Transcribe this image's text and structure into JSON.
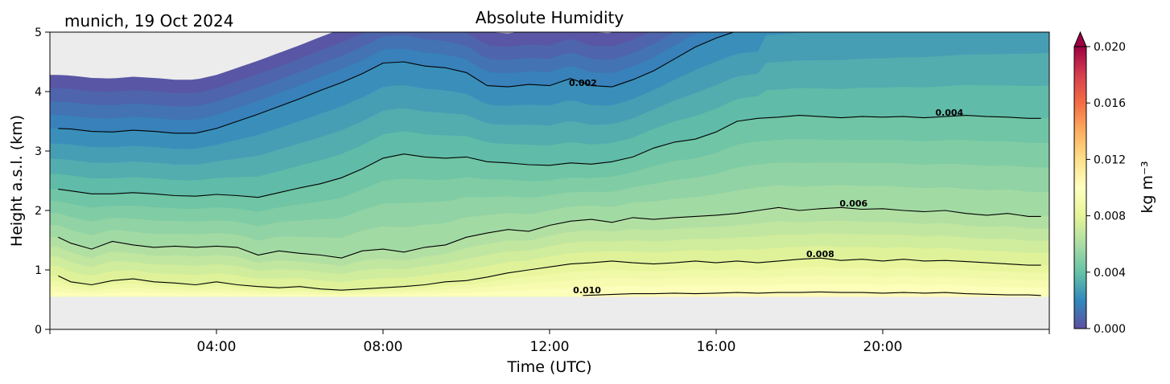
{
  "chart_data": {
    "type": "heatmap",
    "title": "Absolute Humidity",
    "location_label": "munich, 19 Oct 2024",
    "xlabel": "Time (UTC)",
    "ylabel": "Height a.s.l. (km)",
    "xlim": [
      0,
      24
    ],
    "ylim": [
      0,
      5
    ],
    "xticks": [
      {
        "value": 4,
        "label": "04:00"
      },
      {
        "value": 8,
        "label": "08:00"
      },
      {
        "value": 12,
        "label": "12:00"
      },
      {
        "value": 16,
        "label": "16:00"
      },
      {
        "value": 20,
        "label": "20:00"
      }
    ],
    "yticks": [
      {
        "value": 0,
        "label": "0"
      },
      {
        "value": 1,
        "label": "1"
      },
      {
        "value": 2,
        "label": "2"
      },
      {
        "value": 3,
        "label": "3"
      },
      {
        "value": 4,
        "label": "4"
      },
      {
        "value": 5,
        "label": "5"
      }
    ],
    "data_bottom_km": 0.55,
    "colorbar": {
      "label": "kg m⁻³",
      "min": 0.0,
      "max": 0.02,
      "colormap": "Spectral_r",
      "extend": "max",
      "ticks": [
        {
          "value": 0.0,
          "label": "0.000"
        },
        {
          "value": 0.004,
          "label": "0.004"
        },
        {
          "value": 0.008,
          "label": "0.008"
        },
        {
          "value": 0.012,
          "label": "0.012"
        },
        {
          "value": 0.016,
          "label": "0.016"
        },
        {
          "value": 0.02,
          "label": "0.020"
        }
      ]
    },
    "contours": [
      {
        "level": 0.002,
        "label": "0.002",
        "label_x": 12.8,
        "label_y": 4.15,
        "x": [
          0.2,
          0.5,
          1,
          1.5,
          2,
          2.5,
          3,
          3.5,
          4,
          4.5,
          5,
          5.5,
          6,
          6.5,
          7,
          7.5,
          8,
          8.5,
          9,
          9.5,
          10,
          10.5,
          11,
          11.5,
          12,
          12.5,
          13,
          13.5,
          14,
          14.5,
          15,
          15.5,
          16,
          16.5,
          17
        ],
        "y": [
          3.38,
          3.37,
          3.33,
          3.32,
          3.35,
          3.33,
          3.3,
          3.3,
          3.38,
          3.5,
          3.62,
          3.75,
          3.88,
          4.02,
          4.15,
          4.3,
          4.48,
          4.5,
          4.43,
          4.4,
          4.32,
          4.1,
          4.08,
          4.12,
          4.1,
          4.22,
          4.1,
          4.08,
          4.2,
          4.35,
          4.55,
          4.75,
          4.9,
          5.02,
          5.05
        ]
      },
      {
        "level": 0.004,
        "label": "0.004",
        "label_x": 21.6,
        "label_y": 3.65,
        "x": [
          0.2,
          0.5,
          1,
          1.5,
          2,
          2.5,
          3,
          3.5,
          4,
          4.5,
          5,
          5.5,
          6,
          6.5,
          7,
          7.5,
          8,
          8.5,
          9,
          9.5,
          10,
          10.5,
          11,
          11.5,
          12,
          12.5,
          13,
          13.5,
          14,
          14.5,
          15,
          15.5,
          16,
          16.5,
          17,
          17.5,
          18,
          18.5,
          19,
          19.5,
          20,
          20.5,
          21,
          21.5,
          22,
          22.5,
          23,
          23.5,
          23.8
        ],
        "y": [
          2.36,
          2.33,
          2.28,
          2.28,
          2.3,
          2.28,
          2.25,
          2.24,
          2.27,
          2.25,
          2.22,
          2.3,
          2.38,
          2.45,
          2.55,
          2.7,
          2.88,
          2.95,
          2.9,
          2.88,
          2.9,
          2.82,
          2.8,
          2.77,
          2.76,
          2.8,
          2.78,
          2.82,
          2.9,
          3.05,
          3.15,
          3.2,
          3.32,
          3.5,
          3.55,
          3.57,
          3.6,
          3.58,
          3.56,
          3.58,
          3.57,
          3.58,
          3.56,
          3.58,
          3.6,
          3.58,
          3.57,
          3.55,
          3.55
        ]
      },
      {
        "level": 0.006,
        "label": "0.006",
        "label_x": 19.3,
        "label_y": 2.12,
        "x": [
          0.2,
          0.5,
          1,
          1.5,
          2,
          2.5,
          3,
          3.5,
          4,
          4.5,
          5,
          5.5,
          6,
          6.5,
          7,
          7.5,
          8,
          8.5,
          9,
          9.5,
          10,
          10.5,
          11,
          11.5,
          12,
          12.5,
          13,
          13.5,
          14,
          14.5,
          15,
          15.5,
          16,
          16.5,
          17,
          17.5,
          18,
          18.5,
          19,
          19.5,
          20,
          20.5,
          21,
          21.5,
          22,
          22.5,
          23,
          23.5,
          23.8
        ],
        "y": [
          1.55,
          1.45,
          1.35,
          1.48,
          1.42,
          1.38,
          1.4,
          1.38,
          1.4,
          1.38,
          1.25,
          1.32,
          1.28,
          1.25,
          1.2,
          1.32,
          1.35,
          1.3,
          1.38,
          1.42,
          1.55,
          1.62,
          1.68,
          1.65,
          1.75,
          1.82,
          1.85,
          1.8,
          1.88,
          1.85,
          1.88,
          1.9,
          1.92,
          1.95,
          2.0,
          2.05,
          2.0,
          2.03,
          2.05,
          2.02,
          2.03,
          2.0,
          1.98,
          2.0,
          1.95,
          1.92,
          1.95,
          1.9,
          1.9
        ]
      },
      {
        "level": 0.008,
        "label": "0.008",
        "label_x": 18.5,
        "label_y": 1.27,
        "x": [
          0.2,
          0.5,
          1,
          1.5,
          2,
          2.5,
          3,
          3.5,
          4,
          4.5,
          5,
          5.5,
          6,
          6.5,
          7,
          7.5,
          8,
          8.5,
          9,
          9.5,
          10,
          10.5,
          11,
          11.5,
          12,
          12.5,
          13,
          13.5,
          14,
          14.5,
          15,
          15.5,
          16,
          16.5,
          17,
          17.5,
          18,
          18.5,
          19,
          19.5,
          20,
          20.5,
          21,
          21.5,
          22,
          22.5,
          23,
          23.5,
          23.8
        ],
        "y": [
          0.9,
          0.8,
          0.75,
          0.82,
          0.85,
          0.8,
          0.78,
          0.75,
          0.8,
          0.75,
          0.72,
          0.7,
          0.72,
          0.68,
          0.66,
          0.68,
          0.7,
          0.72,
          0.75,
          0.8,
          0.82,
          0.88,
          0.95,
          1.0,
          1.05,
          1.1,
          1.12,
          1.15,
          1.12,
          1.1,
          1.12,
          1.15,
          1.12,
          1.15,
          1.12,
          1.15,
          1.18,
          1.2,
          1.16,
          1.18,
          1.15,
          1.18,
          1.15,
          1.16,
          1.14,
          1.12,
          1.1,
          1.08,
          1.08
        ]
      },
      {
        "level": 0.01,
        "label": "0.010",
        "label_x": 12.9,
        "label_y": 0.66,
        "x": [
          12.8,
          13.2,
          13.6,
          14,
          14.5,
          15,
          15.5,
          16,
          16.5,
          17,
          17.5,
          18,
          18.5,
          19,
          19.5,
          20,
          20.5,
          21,
          21.5,
          22,
          22.5,
          23,
          23.5,
          23.8
        ],
        "y": [
          0.57,
          0.58,
          0.59,
          0.6,
          0.6,
          0.61,
          0.6,
          0.61,
          0.62,
          0.61,
          0.62,
          0.62,
          0.63,
          0.62,
          0.62,
          0.61,
          0.62,
          0.61,
          0.62,
          0.6,
          0.59,
          0.58,
          0.58,
          0.57
        ]
      }
    ]
  }
}
